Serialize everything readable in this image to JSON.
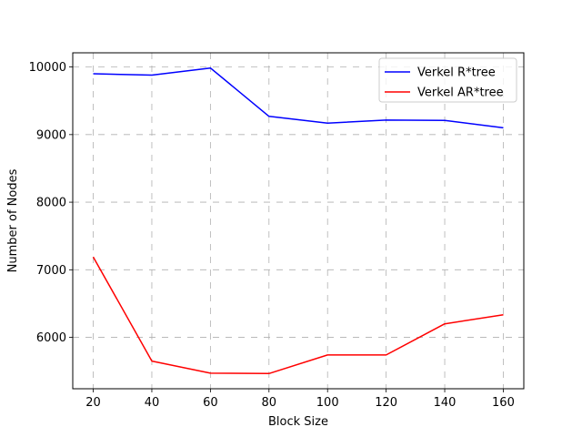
{
  "chart_data": {
    "type": "line",
    "title": "",
    "xlabel": "Block Size",
    "ylabel": "Number of Nodes",
    "x": [
      20,
      40,
      60,
      80,
      100,
      120,
      140,
      160
    ],
    "xticks": [
      "20",
      "40",
      "60",
      "80",
      "100",
      "120",
      "140",
      "160"
    ],
    "yticks": [
      "6000",
      "7000",
      "8000",
      "9000",
      "10000"
    ],
    "xlim": [
      13,
      167
    ],
    "ylim": [
      5240,
      10210
    ],
    "grid": true,
    "grid_style": "dashed",
    "legend_position": "top-right",
    "series": [
      {
        "name": "Verkel R*tree",
        "color": "#0000ff",
        "values": [
          9900,
          9880,
          9985,
          9270,
          9170,
          9215,
          9210,
          9100
        ]
      },
      {
        "name": "Verkel AR*tree",
        "color": "#ff0000",
        "values": [
          7190,
          5650,
          5470,
          5465,
          5740,
          5740,
          6200,
          6335
        ]
      }
    ]
  }
}
